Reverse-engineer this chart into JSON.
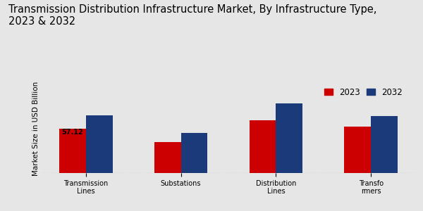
{
  "title": "Transmission Distribution Infrastructure Market, By Infrastructure Type,\n2023 & 2032",
  "ylabel": "Market Size in USD Billion",
  "categories": [
    "Transmission\nLines",
    "Substations",
    "Distribution\nLines",
    "Transfo\nrmers"
  ],
  "values_2023": [
    57.12,
    40,
    68,
    60
  ],
  "values_2032": [
    75,
    52,
    90,
    74
  ],
  "color_2023": "#cc0000",
  "color_2032": "#1a3a7a",
  "annotation_text": "57.12",
  "background_color": "#e6e6e6",
  "bar_width": 0.28,
  "legend_labels": [
    "2023",
    "2032"
  ],
  "ylim": [
    0,
    115
  ],
  "title_fontsize": 10.5,
  "label_fontsize": 7.5,
  "tick_fontsize": 7,
  "legend_fontsize": 8.5,
  "red_stripe_color": "#cc0000"
}
